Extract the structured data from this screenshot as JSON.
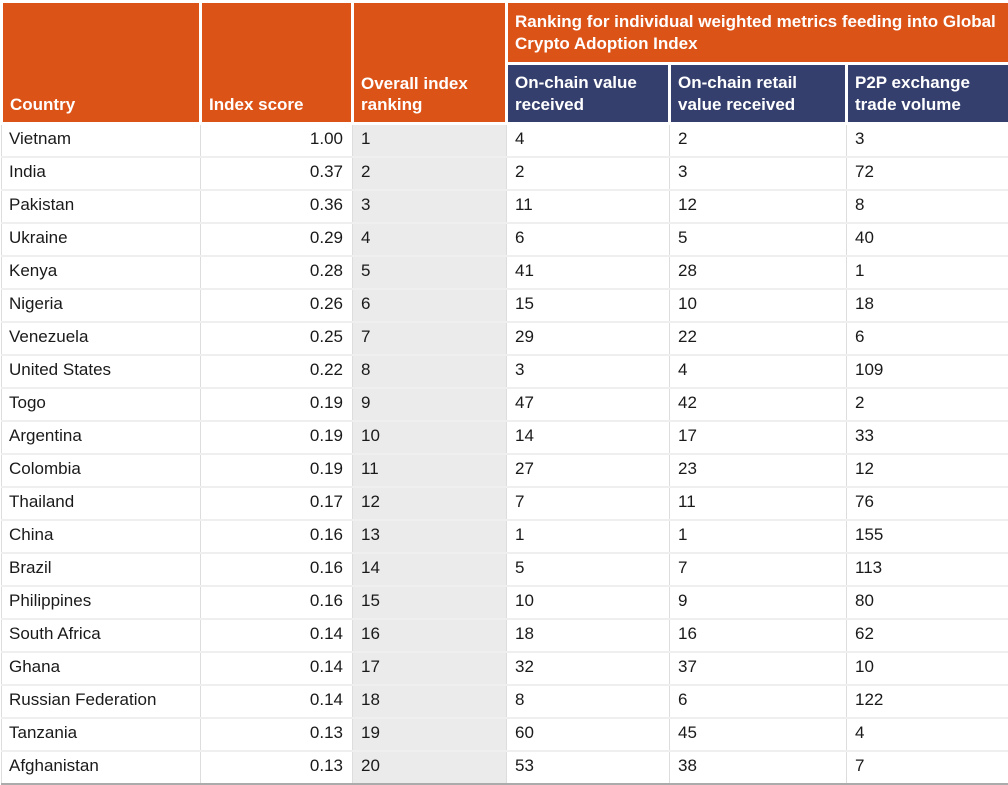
{
  "colors": {
    "header_orange": "#DC5318",
    "header_blue": "#353F6E",
    "rank_column_bg": "#EBEBEB",
    "grid_line": "#DDDDDD",
    "bottom_border": "#ABABAB",
    "text": "#1A1A1A",
    "header_text": "#FFFFFF"
  },
  "chart_data": {
    "type": "table",
    "banner": "Ranking for individual weighted metrics feeding into Global Crypto Adoption Index",
    "columns": {
      "country": "Country",
      "index_score": "Index score",
      "overall_ranking": "Overall index ranking",
      "on_chain_value": "On-chain value received",
      "on_chain_retail": "On-chain retail value received",
      "p2p_volume": "P2P exchange trade volume"
    },
    "rows": [
      {
        "country": "Vietnam",
        "index_score": "1.00",
        "overall_ranking": "1",
        "on_chain_value": "4",
        "on_chain_retail": "2",
        "p2p_volume": "3"
      },
      {
        "country": "India",
        "index_score": "0.37",
        "overall_ranking": "2",
        "on_chain_value": "2",
        "on_chain_retail": "3",
        "p2p_volume": "72"
      },
      {
        "country": "Pakistan",
        "index_score": "0.36",
        "overall_ranking": "3",
        "on_chain_value": "11",
        "on_chain_retail": "12",
        "p2p_volume": "8"
      },
      {
        "country": "Ukraine",
        "index_score": "0.29",
        "overall_ranking": "4",
        "on_chain_value": "6",
        "on_chain_retail": "5",
        "p2p_volume": "40"
      },
      {
        "country": "Kenya",
        "index_score": "0.28",
        "overall_ranking": "5",
        "on_chain_value": "41",
        "on_chain_retail": "28",
        "p2p_volume": "1"
      },
      {
        "country": "Nigeria",
        "index_score": "0.26",
        "overall_ranking": "6",
        "on_chain_value": "15",
        "on_chain_retail": "10",
        "p2p_volume": "18"
      },
      {
        "country": "Venezuela",
        "index_score": "0.25",
        "overall_ranking": "7",
        "on_chain_value": "29",
        "on_chain_retail": "22",
        "p2p_volume": "6"
      },
      {
        "country": "United States",
        "index_score": "0.22",
        "overall_ranking": "8",
        "on_chain_value": "3",
        "on_chain_retail": "4",
        "p2p_volume": "109"
      },
      {
        "country": "Togo",
        "index_score": "0.19",
        "overall_ranking": "9",
        "on_chain_value": "47",
        "on_chain_retail": "42",
        "p2p_volume": "2"
      },
      {
        "country": "Argentina",
        "index_score": "0.19",
        "overall_ranking": "10",
        "on_chain_value": "14",
        "on_chain_retail": "17",
        "p2p_volume": "33"
      },
      {
        "country": "Colombia",
        "index_score": "0.19",
        "overall_ranking": "11",
        "on_chain_value": "27",
        "on_chain_retail": "23",
        "p2p_volume": "12"
      },
      {
        "country": "Thailand",
        "index_score": "0.17",
        "overall_ranking": "12",
        "on_chain_value": "7",
        "on_chain_retail": "11",
        "p2p_volume": "76"
      },
      {
        "country": "China",
        "index_score": "0.16",
        "overall_ranking": "13",
        "on_chain_value": "1",
        "on_chain_retail": "1",
        "p2p_volume": "155"
      },
      {
        "country": "Brazil",
        "index_score": "0.16",
        "overall_ranking": "14",
        "on_chain_value": "5",
        "on_chain_retail": "7",
        "p2p_volume": "113"
      },
      {
        "country": "Philippines",
        "index_score": "0.16",
        "overall_ranking": "15",
        "on_chain_value": "10",
        "on_chain_retail": "9",
        "p2p_volume": "80"
      },
      {
        "country": "South Africa",
        "index_score": "0.14",
        "overall_ranking": "16",
        "on_chain_value": "18",
        "on_chain_retail": "16",
        "p2p_volume": "62"
      },
      {
        "country": "Ghana",
        "index_score": "0.14",
        "overall_ranking": "17",
        "on_chain_value": "32",
        "on_chain_retail": "37",
        "p2p_volume": "10"
      },
      {
        "country": "Russian Federation",
        "index_score": "0.14",
        "overall_ranking": "18",
        "on_chain_value": "8",
        "on_chain_retail": "6",
        "p2p_volume": "122"
      },
      {
        "country": "Tanzania",
        "index_score": "0.13",
        "overall_ranking": "19",
        "on_chain_value": "60",
        "on_chain_retail": "45",
        "p2p_volume": "4"
      },
      {
        "country": "Afghanistan",
        "index_score": "0.13",
        "overall_ranking": "20",
        "on_chain_value": "53",
        "on_chain_retail": "38",
        "p2p_volume": "7"
      }
    ]
  }
}
